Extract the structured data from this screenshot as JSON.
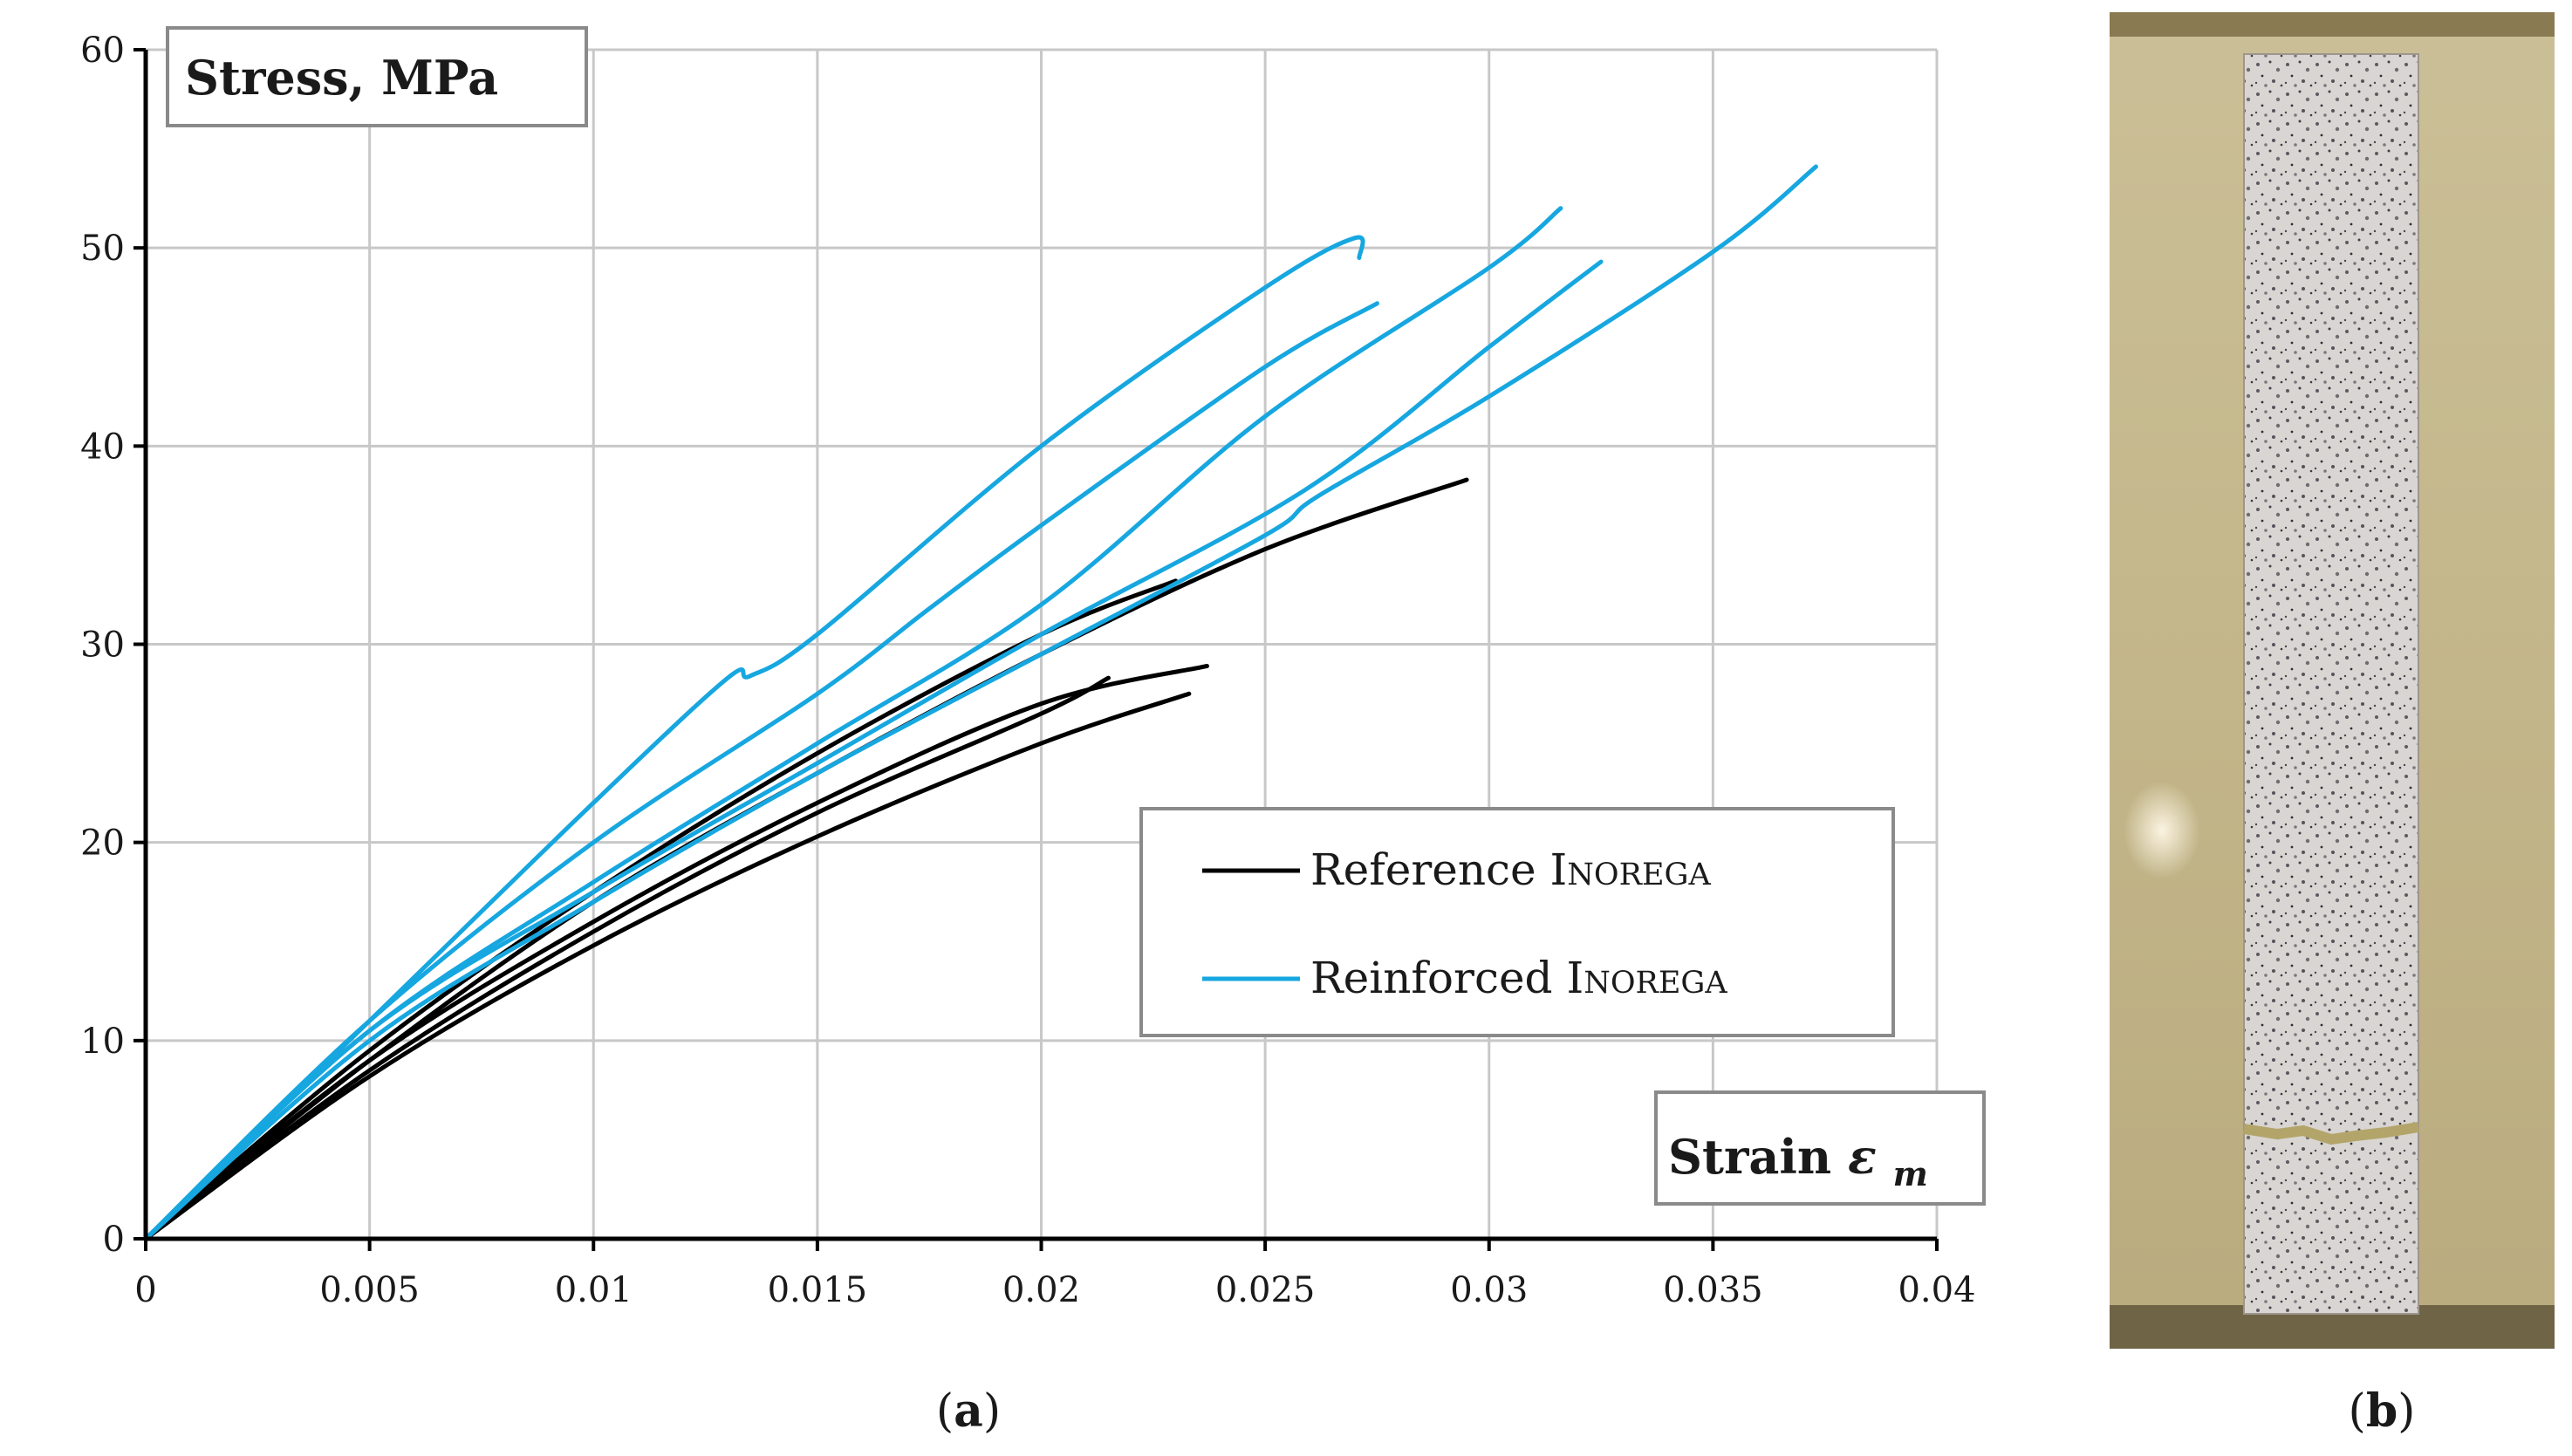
{
  "chart_data": {
    "type": "line",
    "title": "",
    "xlabel": "Strain",
    "xlabel_symbol": "ε",
    "xlabel_subscript": "m",
    "ylabel": "Stress, MPa",
    "xlim": [
      0,
      0.04
    ],
    "ylim": [
      0,
      60
    ],
    "x_ticks": [
      "0",
      "0.005",
      "0.01",
      "0.015",
      "0.02",
      "0.025",
      "0.03",
      "0.035",
      "0.04"
    ],
    "y_ticks": [
      "0",
      "10",
      "20",
      "30",
      "40",
      "50",
      "60"
    ],
    "grid": true,
    "legend_position": "center-right",
    "legend": [
      {
        "name": "Reference",
        "suffix": "Inorega",
        "color": "#000000"
      },
      {
        "name": "Reinforced",
        "suffix": "Inorega",
        "color": "#17a7e0"
      }
    ],
    "series": [
      {
        "group": "Reference",
        "name": "Reference 1",
        "color": "#000000",
        "points": [
          [
            0,
            0
          ],
          [
            0.005,
            9.5
          ],
          [
            0.01,
            17.5
          ],
          [
            0.015,
            24.5
          ],
          [
            0.02,
            30.5
          ],
          [
            0.023,
            33.2
          ]
        ]
      },
      {
        "group": "Reference",
        "name": "Reference 2",
        "color": "#000000",
        "points": [
          [
            0,
            0
          ],
          [
            0.005,
            9
          ],
          [
            0.01,
            17
          ],
          [
            0.015,
            23.5
          ],
          [
            0.02,
            29.5
          ],
          [
            0.025,
            34.8
          ],
          [
            0.0295,
            38.3
          ]
        ]
      },
      {
        "group": "Reference",
        "name": "Reference 3",
        "color": "#000000",
        "points": [
          [
            0,
            0
          ],
          [
            0.005,
            8.5
          ],
          [
            0.01,
            15.5
          ],
          [
            0.015,
            21.5
          ],
          [
            0.02,
            26.5
          ],
          [
            0.0215,
            28.3
          ]
        ]
      },
      {
        "group": "Reference",
        "name": "Reference 4",
        "color": "#000000",
        "points": [
          [
            0,
            0
          ],
          [
            0.005,
            9
          ],
          [
            0.01,
            16
          ],
          [
            0.015,
            22
          ],
          [
            0.02,
            27
          ],
          [
            0.0237,
            28.9
          ]
        ]
      },
      {
        "group": "Reference",
        "name": "Reference 5",
        "color": "#000000",
        "points": [
          [
            0,
            0
          ],
          [
            0.005,
            8.2
          ],
          [
            0.01,
            14.8
          ],
          [
            0.015,
            20.3
          ],
          [
            0.02,
            25
          ],
          [
            0.0233,
            27.5
          ]
        ]
      },
      {
        "group": "Reinforced",
        "name": "Reinforced 1",
        "color": "#17a7e0",
        "points": [
          [
            0,
            0
          ],
          [
            0.005,
            11
          ],
          [
            0.01,
            22
          ],
          [
            0.013,
            28.3
          ],
          [
            0.0135,
            28.4
          ],
          [
            0.015,
            30.5
          ],
          [
            0.02,
            40
          ],
          [
            0.025,
            48
          ],
          [
            0.027,
            50.5
          ],
          [
            0.0271,
            49.5
          ]
        ]
      },
      {
        "group": "Reinforced",
        "name": "Reinforced 2",
        "color": "#17a7e0",
        "points": [
          [
            0,
            0
          ],
          [
            0.005,
            11
          ],
          [
            0.01,
            20
          ],
          [
            0.015,
            27.5
          ],
          [
            0.0175,
            31.8
          ],
          [
            0.02,
            36
          ],
          [
            0.025,
            44
          ],
          [
            0.0275,
            47.2
          ]
        ]
      },
      {
        "group": "Reinforced",
        "name": "Reinforced 3",
        "color": "#17a7e0",
        "points": [
          [
            0,
            0
          ],
          [
            0.005,
            10.5
          ],
          [
            0.01,
            18
          ],
          [
            0.015,
            25
          ],
          [
            0.02,
            32
          ],
          [
            0.025,
            41.5
          ],
          [
            0.03,
            49
          ],
          [
            0.0316,
            52
          ]
        ]
      },
      {
        "group": "Reinforced",
        "name": "Reinforced 4",
        "color": "#17a7e0",
        "points": [
          [
            0,
            0
          ],
          [
            0.005,
            10.5
          ],
          [
            0.01,
            17.5
          ],
          [
            0.015,
            24
          ],
          [
            0.02,
            30.5
          ],
          [
            0.0259,
            37.8
          ],
          [
            0.03,
            45
          ],
          [
            0.0325,
            49.3
          ]
        ]
      },
      {
        "group": "Reinforced",
        "name": "Reinforced 5",
        "color": "#17a7e0",
        "points": [
          [
            0,
            0
          ],
          [
            0.005,
            10
          ],
          [
            0.01,
            17
          ],
          [
            0.015,
            23.5
          ],
          [
            0.02,
            29.5
          ],
          [
            0.025,
            35.5
          ],
          [
            0.0262,
            37.5
          ],
          [
            0.03,
            42.5
          ],
          [
            0.035,
            49.8
          ],
          [
            0.0373,
            54.1
          ]
        ]
      }
    ]
  },
  "captions": {
    "a": "(a)",
    "b": "(b)",
    "a_letter": "a",
    "b_letter": "b"
  }
}
